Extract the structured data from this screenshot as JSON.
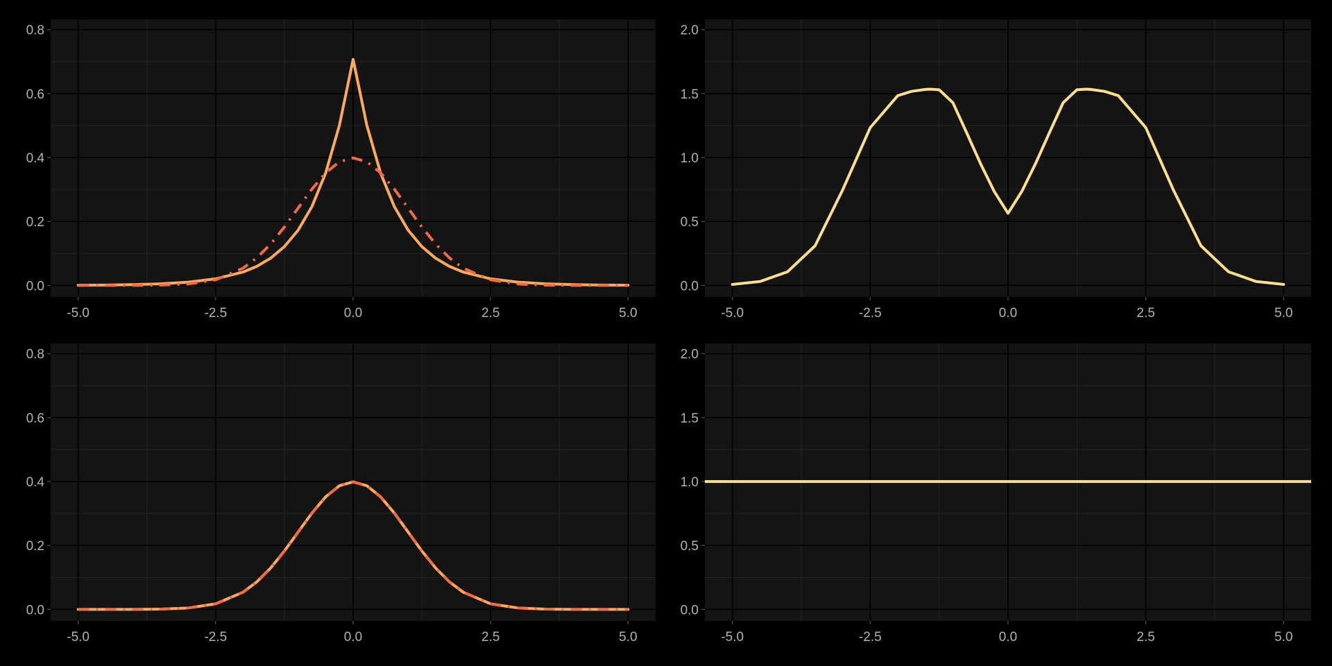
{
  "colors": {
    "figure_background": "#000000",
    "panel_background": "#141414",
    "grid_major": "#000000",
    "grid_minor": "#262626",
    "tick_label": "#b3b3b3",
    "laplace": "#fdaa5a",
    "normal_dashdot": "#f26b47",
    "ratio_line": "#fee08b"
  },
  "chart_data": [
    {
      "type": "line",
      "panel": "top-left",
      "title": "",
      "xlabel": "",
      "ylabel": "",
      "xlim": [
        -5,
        5
      ],
      "ylim": [
        0,
        0.8
      ],
      "xticks": [
        "-5.0",
        "-2.5",
        "0.0",
        "2.5",
        "5.0"
      ],
      "yticks": [
        "0.0",
        "0.2",
        "0.4",
        "0.6",
        "0.8"
      ],
      "grid": true,
      "series": [
        {
          "color": "#fdaa5a",
          "style": "solid",
          "x": [
            -5,
            -4.5,
            -4,
            -3.5,
            -3,
            -2.5,
            -2,
            -1.75,
            -1.5,
            -1.25,
            -1,
            -0.75,
            -0.5,
            -0.25,
            0,
            0.25,
            0.5,
            0.75,
            1,
            1.25,
            1.5,
            1.75,
            2,
            2.5,
            3,
            3.5,
            4,
            4.5,
            5
          ],
          "y": [
            0.0006,
            0.0012,
            0.0024,
            0.005,
            0.0102,
            0.0206,
            0.0419,
            0.0597,
            0.0851,
            0.1213,
            0.1729,
            0.2464,
            0.3511,
            0.5003,
            0.7071,
            0.5003,
            0.3511,
            0.2464,
            0.1729,
            0.1213,
            0.0851,
            0.0597,
            0.0419,
            0.0206,
            0.0102,
            0.005,
            0.0024,
            0.0012,
            0.0006
          ]
        },
        {
          "color": "#f26b47",
          "style": "dashdot",
          "x": [
            -5,
            -4.5,
            -4,
            -3.5,
            -3,
            -2.5,
            -2,
            -1.75,
            -1.5,
            -1.25,
            -1,
            -0.75,
            -0.5,
            -0.25,
            0,
            0.25,
            0.5,
            0.75,
            1,
            1.25,
            1.5,
            1.75,
            2,
            2.5,
            3,
            3.5,
            4,
            4.5,
            5
          ],
          "y": [
            0,
            0,
            0.0001,
            0.0009,
            0.0044,
            0.0175,
            0.054,
            0.0863,
            0.1295,
            0.1826,
            0.242,
            0.3011,
            0.3521,
            0.3867,
            0.3989,
            0.3867,
            0.3521,
            0.3011,
            0.242,
            0.1826,
            0.1295,
            0.0863,
            0.054,
            0.0175,
            0.0044,
            0.0009,
            0.0001,
            0,
            0
          ]
        }
      ]
    },
    {
      "type": "line",
      "panel": "top-right",
      "title": "",
      "xlabel": "",
      "ylabel": "",
      "xlim": [
        -5,
        5
      ],
      "ylim": [
        0,
        2
      ],
      "xticks": [
        "-5.0",
        "-2.5",
        "0.0",
        "2.5",
        "5.0"
      ],
      "yticks": [
        "0.0",
        "0.5",
        "1.0",
        "1.5",
        "2.0"
      ],
      "grid": true,
      "series": [
        {
          "color": "#fee08b",
          "style": "solid",
          "x": [
            -5,
            -4.5,
            -4,
            -3.5,
            -3,
            -2.5,
            -2,
            -1.75,
            -1.5,
            -1.414,
            -1.25,
            -1,
            -0.75,
            -0.5,
            -0.25,
            0,
            0.25,
            0.5,
            0.75,
            1,
            1.25,
            1.414,
            1.5,
            1.75,
            2,
            2.5,
            3,
            3.5,
            4,
            4.5,
            5
          ],
          "y": [
            0.0074,
            0.0306,
            0.1066,
            0.3101,
            0.7468,
            1.2337,
            1.4841,
            1.5175,
            1.5329,
            1.5346,
            1.5303,
            1.4288,
            1.1932,
            0.9533,
            0.7347,
            0.5642,
            0.7347,
            0.9533,
            1.1932,
            1.4288,
            1.5303,
            1.5346,
            1.5329,
            1.5175,
            1.4841,
            1.2337,
            0.7468,
            0.3101,
            0.1066,
            0.0306,
            0.0074
          ]
        }
      ]
    },
    {
      "type": "line",
      "panel": "bottom-left",
      "title": "",
      "xlabel": "",
      "ylabel": "",
      "xlim": [
        -5,
        5
      ],
      "ylim": [
        0,
        0.8
      ],
      "xticks": [
        "-5.0",
        "-2.5",
        "0.0",
        "2.5",
        "5.0"
      ],
      "yticks": [
        "0.0",
        "0.2",
        "0.4",
        "0.6",
        "0.8"
      ],
      "grid": true,
      "series": [
        {
          "color": "#fdaa5a",
          "style": "solid",
          "x": [
            -5,
            -4.5,
            -4,
            -3.5,
            -3,
            -2.5,
            -2,
            -1.75,
            -1.5,
            -1.25,
            -1,
            -0.75,
            -0.5,
            -0.25,
            0,
            0.25,
            0.5,
            0.75,
            1,
            1.25,
            1.5,
            1.75,
            2,
            2.5,
            3,
            3.5,
            4,
            4.5,
            5
          ],
          "y": [
            0,
            0,
            0.0001,
            0.0009,
            0.0044,
            0.0175,
            0.054,
            0.0863,
            0.1295,
            0.1826,
            0.242,
            0.3011,
            0.3521,
            0.3867,
            0.3989,
            0.3867,
            0.3521,
            0.3011,
            0.242,
            0.1826,
            0.1295,
            0.0863,
            0.054,
            0.0175,
            0.0044,
            0.0009,
            0.0001,
            0,
            0
          ]
        },
        {
          "color": "#f26b47",
          "style": "dashdot",
          "x": [
            -5,
            -4.5,
            -4,
            -3.5,
            -3,
            -2.5,
            -2,
            -1.75,
            -1.5,
            -1.25,
            -1,
            -0.75,
            -0.5,
            -0.25,
            0,
            0.25,
            0.5,
            0.75,
            1,
            1.25,
            1.5,
            1.75,
            2,
            2.5,
            3,
            3.5,
            4,
            4.5,
            5
          ],
          "y": [
            0,
            0,
            0.0001,
            0.0009,
            0.0044,
            0.0175,
            0.054,
            0.0863,
            0.1295,
            0.1826,
            0.242,
            0.3011,
            0.3521,
            0.3867,
            0.3989,
            0.3867,
            0.3521,
            0.3011,
            0.242,
            0.1826,
            0.1295,
            0.0863,
            0.054,
            0.0175,
            0.0044,
            0.0009,
            0.0001,
            0,
            0
          ]
        }
      ]
    },
    {
      "type": "line",
      "panel": "bottom-right",
      "title": "",
      "xlabel": "",
      "ylabel": "",
      "xlim": [
        -5,
        5
      ],
      "ylim": [
        0,
        2
      ],
      "xticks": [
        "-5.0",
        "-2.5",
        "0.0",
        "2.5",
        "5.0"
      ],
      "yticks": [
        "0.0",
        "0.5",
        "1.0",
        "1.5",
        "2.0"
      ],
      "grid": true,
      "series": [
        {
          "color": "#fee08b",
          "style": "solid",
          "x": [
            -5.5,
            5.5
          ],
          "y": [
            1,
            1
          ]
        }
      ]
    }
  ]
}
